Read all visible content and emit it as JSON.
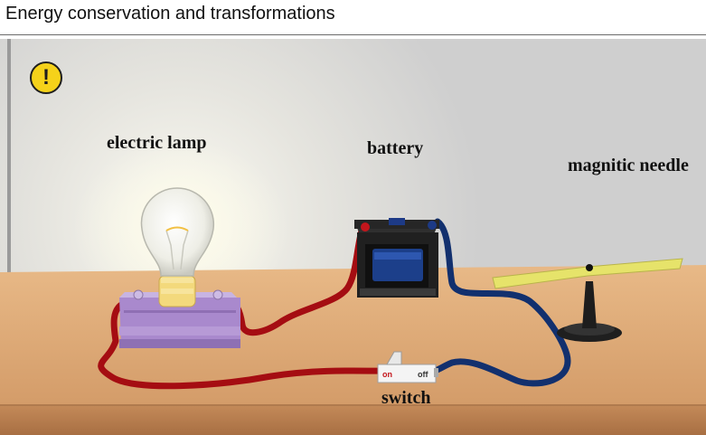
{
  "header": {
    "title": "Energy conservation and transformations"
  },
  "warning": {
    "symbol": "!"
  },
  "labels": {
    "lamp": "electric lamp",
    "battery": "battery",
    "needle": "magnitic needle",
    "switch": "switch"
  },
  "switch": {
    "on_label": "on",
    "off_label": "off"
  },
  "colors": {
    "wire_red": "#a50d12",
    "wire_blue": "#12306e",
    "table": "#d9a474",
    "wall": "#d4d4d4",
    "needle": "#e6e36a",
    "warning": "#f5d21a"
  }
}
